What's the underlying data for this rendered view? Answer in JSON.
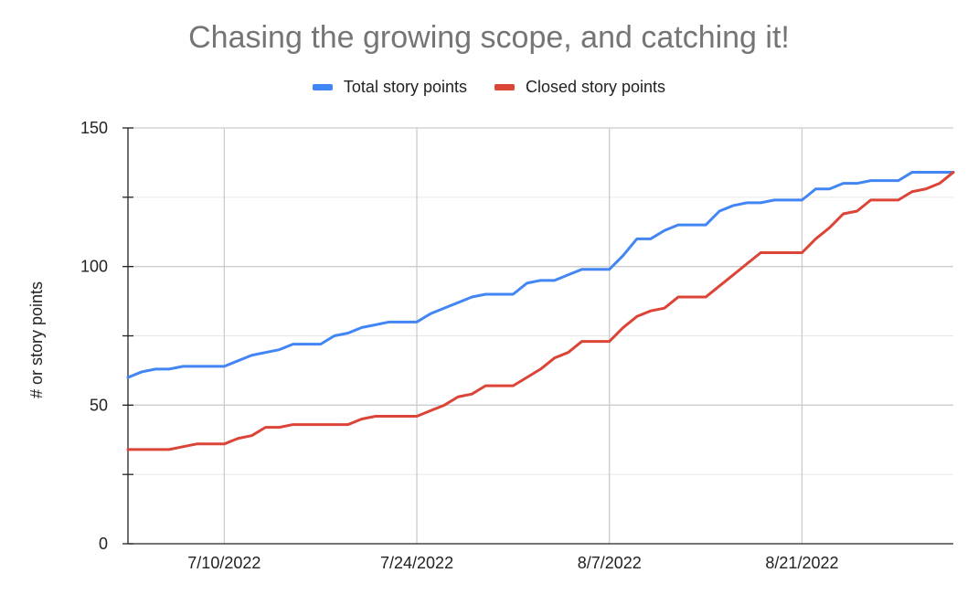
{
  "chart_data": {
    "type": "line",
    "title": "Chasing the growing scope, and catching it!",
    "xlabel": "",
    "ylabel": "# or story points",
    "ylim": [
      0,
      150
    ],
    "xlim": [
      "2022-07-03",
      "2022-09-01"
    ],
    "yticks": [
      0,
      50,
      100,
      150
    ],
    "xticks": [
      {
        "date": "2022-07-10",
        "label": "7/10/2022"
      },
      {
        "date": "2022-07-24",
        "label": "7/24/2022"
      },
      {
        "date": "2022-08-07",
        "label": "8/7/2022"
      },
      {
        "date": "2022-08-21",
        "label": "8/21/2022"
      }
    ],
    "grid": true,
    "legend": "top",
    "series": [
      {
        "name": "Total story points",
        "color": "#4285f4",
        "points": [
          [
            "2022-07-03",
            60
          ],
          [
            "2022-07-04",
            62
          ],
          [
            "2022-07-05",
            63
          ],
          [
            "2022-07-06",
            63
          ],
          [
            "2022-07-07",
            64
          ],
          [
            "2022-07-08",
            64
          ],
          [
            "2022-07-09",
            64
          ],
          [
            "2022-07-10",
            64
          ],
          [
            "2022-07-11",
            66
          ],
          [
            "2022-07-12",
            68
          ],
          [
            "2022-07-13",
            69
          ],
          [
            "2022-07-14",
            70
          ],
          [
            "2022-07-15",
            72
          ],
          [
            "2022-07-16",
            72
          ],
          [
            "2022-07-17",
            72
          ],
          [
            "2022-07-18",
            75
          ],
          [
            "2022-07-19",
            76
          ],
          [
            "2022-07-20",
            78
          ],
          [
            "2022-07-21",
            79
          ],
          [
            "2022-07-22",
            80
          ],
          [
            "2022-07-23",
            80
          ],
          [
            "2022-07-24",
            80
          ],
          [
            "2022-07-25",
            83
          ],
          [
            "2022-07-26",
            85
          ],
          [
            "2022-07-27",
            87
          ],
          [
            "2022-07-28",
            89
          ],
          [
            "2022-07-29",
            90
          ],
          [
            "2022-07-30",
            90
          ],
          [
            "2022-07-31",
            90
          ],
          [
            "2022-08-01",
            94
          ],
          [
            "2022-08-02",
            95
          ],
          [
            "2022-08-03",
            95
          ],
          [
            "2022-08-04",
            97
          ],
          [
            "2022-08-05",
            99
          ],
          [
            "2022-08-06",
            99
          ],
          [
            "2022-08-07",
            99
          ],
          [
            "2022-08-08",
            104
          ],
          [
            "2022-08-09",
            110
          ],
          [
            "2022-08-10",
            110
          ],
          [
            "2022-08-11",
            113
          ],
          [
            "2022-08-12",
            115
          ],
          [
            "2022-08-13",
            115
          ],
          [
            "2022-08-14",
            115
          ],
          [
            "2022-08-15",
            120
          ],
          [
            "2022-08-16",
            122
          ],
          [
            "2022-08-17",
            123
          ],
          [
            "2022-08-18",
            123
          ],
          [
            "2022-08-19",
            124
          ],
          [
            "2022-08-20",
            124
          ],
          [
            "2022-08-21",
            124
          ],
          [
            "2022-08-22",
            128
          ],
          [
            "2022-08-23",
            128
          ],
          [
            "2022-08-24",
            130
          ],
          [
            "2022-08-25",
            130
          ],
          [
            "2022-08-26",
            131
          ],
          [
            "2022-08-27",
            131
          ],
          [
            "2022-08-28",
            131
          ],
          [
            "2022-08-29",
            134
          ],
          [
            "2022-08-30",
            134
          ],
          [
            "2022-08-31",
            134
          ],
          [
            "2022-09-01",
            134
          ]
        ]
      },
      {
        "name": "Closed story points",
        "color": "#db4437",
        "points": [
          [
            "2022-07-03",
            34
          ],
          [
            "2022-07-04",
            34
          ],
          [
            "2022-07-05",
            34
          ],
          [
            "2022-07-06",
            34
          ],
          [
            "2022-07-07",
            35
          ],
          [
            "2022-07-08",
            36
          ],
          [
            "2022-07-09",
            36
          ],
          [
            "2022-07-10",
            36
          ],
          [
            "2022-07-11",
            38
          ],
          [
            "2022-07-12",
            39
          ],
          [
            "2022-07-13",
            42
          ],
          [
            "2022-07-14",
            42
          ],
          [
            "2022-07-15",
            43
          ],
          [
            "2022-07-16",
            43
          ],
          [
            "2022-07-17",
            43
          ],
          [
            "2022-07-18",
            43
          ],
          [
            "2022-07-19",
            43
          ],
          [
            "2022-07-20",
            45
          ],
          [
            "2022-07-21",
            46
          ],
          [
            "2022-07-22",
            46
          ],
          [
            "2022-07-23",
            46
          ],
          [
            "2022-07-24",
            46
          ],
          [
            "2022-07-25",
            48
          ],
          [
            "2022-07-26",
            50
          ],
          [
            "2022-07-27",
            53
          ],
          [
            "2022-07-28",
            54
          ],
          [
            "2022-07-29",
            57
          ],
          [
            "2022-07-30",
            57
          ],
          [
            "2022-07-31",
            57
          ],
          [
            "2022-08-01",
            60
          ],
          [
            "2022-08-02",
            63
          ],
          [
            "2022-08-03",
            67
          ],
          [
            "2022-08-04",
            69
          ],
          [
            "2022-08-05",
            73
          ],
          [
            "2022-08-06",
            73
          ],
          [
            "2022-08-07",
            73
          ],
          [
            "2022-08-08",
            78
          ],
          [
            "2022-08-09",
            82
          ],
          [
            "2022-08-10",
            84
          ],
          [
            "2022-08-11",
            85
          ],
          [
            "2022-08-12",
            89
          ],
          [
            "2022-08-13",
            89
          ],
          [
            "2022-08-14",
            89
          ],
          [
            "2022-08-15",
            93
          ],
          [
            "2022-08-16",
            97
          ],
          [
            "2022-08-17",
            101
          ],
          [
            "2022-08-18",
            105
          ],
          [
            "2022-08-19",
            105
          ],
          [
            "2022-08-20",
            105
          ],
          [
            "2022-08-21",
            105
          ],
          [
            "2022-08-22",
            110
          ],
          [
            "2022-08-23",
            114
          ],
          [
            "2022-08-24",
            119
          ],
          [
            "2022-08-25",
            120
          ],
          [
            "2022-08-26",
            124
          ],
          [
            "2022-08-27",
            124
          ],
          [
            "2022-08-28",
            124
          ],
          [
            "2022-08-29",
            127
          ],
          [
            "2022-08-30",
            128
          ],
          [
            "2022-08-31",
            130
          ],
          [
            "2022-09-01",
            134
          ]
        ]
      }
    ]
  }
}
